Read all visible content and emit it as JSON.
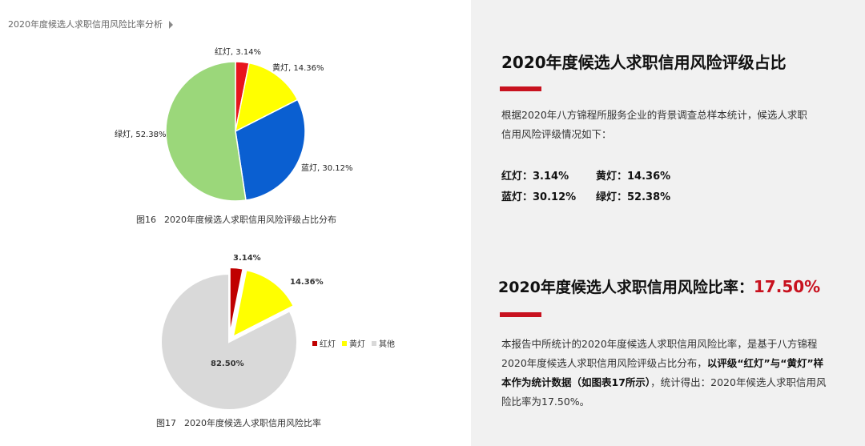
{
  "header": {
    "section_title": "2020年度候选人求职信用风险比率分析"
  },
  "chart_data": [
    {
      "type": "pie",
      "caption_num": "图16",
      "caption_text": "2020年度候选人求职信用风险评级占比分布",
      "slices": [
        {
          "label": "红灯",
          "value": 3.14,
          "display": "红灯, 3.14%",
          "color": "#e8141c"
        },
        {
          "label": "黄灯",
          "value": 14.36,
          "display": "黄灯, 14.36%",
          "color": "#ffff00"
        },
        {
          "label": "蓝灯",
          "value": 30.12,
          "display": "蓝灯, 30.12%",
          "color": "#0a5fd1"
        },
        {
          "label": "绿灯",
          "value": 52.38,
          "display": "绿灯, 52.38%",
          "color": "#9bd77a"
        }
      ]
    },
    {
      "type": "pie",
      "caption_num": "图17",
      "caption_text": "2020年度候选人求职信用风险比率",
      "slices": [
        {
          "label": "红灯",
          "value": 3.14,
          "display": "3.14%",
          "color": "#c00000"
        },
        {
          "label": "黄灯",
          "value": 14.36,
          "display": "14.36%",
          "color": "#ffff00"
        },
        {
          "label": "其他",
          "value": 82.5,
          "display": "82.50%",
          "color": "#d9d9d9"
        }
      ],
      "legend": [
        "红灯",
        "黄灯",
        "其他"
      ],
      "legend_placement": "right"
    }
  ],
  "right_panel": {
    "title1": "2020年度候选人求职信用风险评级占比",
    "intro": [
      "根据2020年八方锦程所服务企业的背景调查总样本统计，候选人求职",
      "信用风险评级情况如下："
    ],
    "stats": [
      {
        "label": "红灯：3.14%"
      },
      {
        "label": "黄灯：14.36%"
      },
      {
        "label": "蓝灯：30.12%"
      },
      {
        "label": "绿灯：52.38%"
      }
    ],
    "title2_prefix": "2020年度候选人求职信用风险比率：",
    "title2_value": "17.50%",
    "body_1": "本报告中所统计的2020年度候选人求职信用风险比率，是基于八方锦程2020年度候选人求职信用风险评级占比分布，",
    "body_bold": "以评级“红灯”与“黄灯”样本作为统计数据（如图表17所示）",
    "body_2": "，统计得出：2020年候选人求职信用风险比率为17.50%。"
  },
  "colors": {
    "accent": "#c8121f",
    "right_bg": "#f1f1f1"
  }
}
